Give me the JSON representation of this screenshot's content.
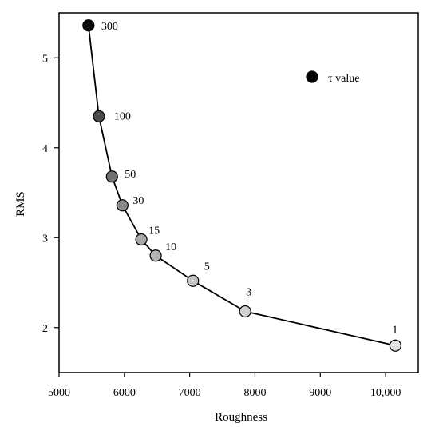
{
  "chart_data": {
    "type": "line",
    "title": "",
    "xlabel": "Roughness",
    "ylabel": "RMS",
    "xlim": [
      5000,
      10500
    ],
    "ylim": [
      1.5,
      5.5
    ],
    "xticks": [
      5000,
      6000,
      7000,
      8000,
      9000,
      10000
    ],
    "xtick_labels": [
      "5000",
      "6000",
      "7000",
      "8000",
      "9000",
      "10,000"
    ],
    "yticks": [
      2,
      3,
      4,
      5
    ],
    "ytick_labels": [
      "2",
      "3",
      "4",
      "5"
    ],
    "grid": false,
    "legend": {
      "label": "τ value",
      "placement": "top-right",
      "marker_color": "#000000"
    },
    "points": [
      {
        "x": 5450,
        "y": 5.36,
        "label": "300",
        "color": "#0a0a0a"
      },
      {
        "x": 5610,
        "y": 4.35,
        "label": "100",
        "color": "#4a4a4a"
      },
      {
        "x": 5810,
        "y": 3.68,
        "label": "50",
        "color": "#707070"
      },
      {
        "x": 5970,
        "y": 3.36,
        "label": "30",
        "color": "#8a8a8a"
      },
      {
        "x": 6260,
        "y": 2.98,
        "label": "15",
        "color": "#a8a8a8"
      },
      {
        "x": 6480,
        "y": 2.8,
        "label": "10",
        "color": "#b4b4b4"
      },
      {
        "x": 7050,
        "y": 2.52,
        "label": "5",
        "color": "#c6c6c6"
      },
      {
        "x": 7850,
        "y": 2.18,
        "label": "3",
        "color": "#d2d2d2"
      },
      {
        "x": 10150,
        "y": 1.8,
        "label": "1",
        "color": "#e4e4e4"
      }
    ]
  }
}
